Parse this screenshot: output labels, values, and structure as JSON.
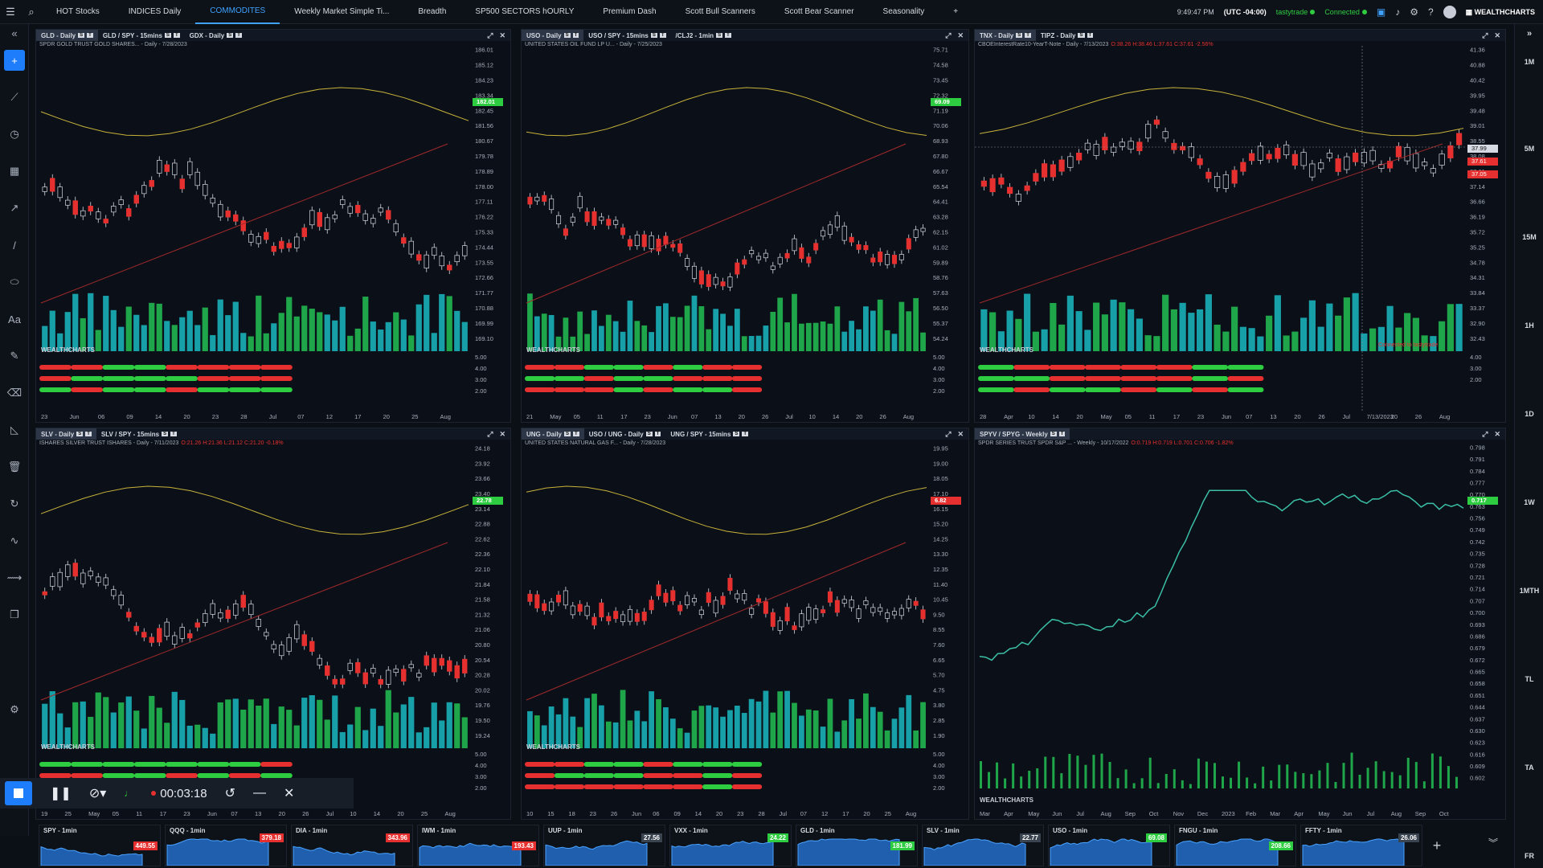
{
  "topbar": {
    "tabs": [
      "HOT Stocks",
      "INDICES Daily",
      "COMMODITES",
      "Weekly Market Simple Ti...",
      "Breadth",
      "SP500 SECTORS hOURLY",
      "Premium Dash",
      "Scott Bull Scanners",
      "Scott Bear Scanner",
      "Seasonality"
    ],
    "active_tab": "COMMODITES",
    "add_tab": "+",
    "time": "9:49:47 PM",
    "timezone": "(UTC -04:00)",
    "broker": "tastytrade",
    "status": "Connected",
    "brand": "WEALTHCHARTS"
  },
  "rightbar": {
    "intervals": [
      "1M",
      "5M",
      "15M",
      "1H",
      "1D",
      "1W",
      "1MTH",
      "TL",
      "TA",
      "FR"
    ]
  },
  "panels": [
    {
      "tabs": [
        "GLD - Daily",
        "GLD / SPY - 15mins",
        "GDX - Daily"
      ],
      "subtitle": "SPDR GOLD TRUST GOLD SHARES... - Daily - 7/28/2023",
      "prices": [
        "186.01",
        "185.12",
        "184.23",
        "183.34",
        "182.45",
        "181.56",
        "180.67",
        "179.78",
        "178.89",
        "178.00",
        "177.11",
        "176.22",
        "175.33",
        "174.44",
        "173.55",
        "172.66",
        "171.77",
        "170.88",
        "169.99",
        "169.10"
      ],
      "last": "182.01",
      "osc_labels": [
        "5.00",
        "4.00",
        "3.00",
        "2.00"
      ],
      "dates": [
        "23",
        "Jun",
        "06",
        "09",
        "14",
        "20",
        "23",
        "28",
        "Jul",
        "07",
        "12",
        "17",
        "20",
        "25",
        "Aug"
      ],
      "watermark": "WEALTHCHARTS"
    },
    {
      "tabs": [
        "USO - Daily",
        "USO / SPY - 15mins",
        "/CLJ2 - 1min"
      ],
      "subtitle": "UNITED STATES OIL FUND LP U... - Daily - 7/25/2023",
      "prices": [
        "75.71",
        "74.58",
        "73.45",
        "72.32",
        "71.19",
        "70.06",
        "68.93",
        "67.80",
        "66.67",
        "65.54",
        "64.41",
        "63.28",
        "62.15",
        "61.02",
        "59.89",
        "58.76",
        "57.63",
        "56.50",
        "55.37",
        "54.24"
      ],
      "last": "69.09",
      "osc_labels": [
        "5.00",
        "4.00",
        "3.00",
        "2.00"
      ],
      "dates": [
        "21",
        "May",
        "05",
        "11",
        "17",
        "23",
        "Jun",
        "07",
        "13",
        "20",
        "26",
        "Jul",
        "10",
        "14",
        "20",
        "26",
        "Aug"
      ],
      "watermark": "WEALTHCHARTS"
    },
    {
      "tabs": [
        "TNX - Daily",
        "TIPZ - Daily"
      ],
      "subtitle": "CBOEInterestRate10-YearT-Note - Daily - 7/13/2023",
      "subtitle_vals": "O:38.26 H:38.46 L:37.61 C:37.61 -2.56%",
      "prices": [
        "41.36",
        "40.88",
        "40.42",
        "39.95",
        "39.48",
        "39.01",
        "38.55",
        "38.08",
        "37.61",
        "37.14",
        "36.66",
        "36.19",
        "35.72",
        "35.25",
        "34.78",
        "34.31",
        "33.84",
        "33.37",
        "32.90",
        "32.43"
      ],
      "labels_right": [
        "37.99",
        "37.61",
        "37.05"
      ],
      "osc_labels": [
        "4.00",
        "3.00",
        "2.00"
      ],
      "connected_note": "Connected to tastytrade",
      "dates": [
        "28",
        "Apr",
        "10",
        "14",
        "20",
        "May",
        "05",
        "11",
        "17",
        "23",
        "Jun",
        "07",
        "13",
        "20",
        "26",
        "Jul",
        "7/13/2023",
        "20",
        "26",
        "Aug"
      ],
      "watermark": "WEALTHCHARTS"
    },
    {
      "tabs": [
        "SLV - Daily",
        "SLV / SPY - 15mins"
      ],
      "subtitle": "ISHARES SILVER TRUST ISHARES - Daily - 7/11/2023",
      "subtitle_vals": "O:21.26 H:21.36 L:21.12 C:21.20 -0.18%",
      "prices": [
        "24.18",
        "23.92",
        "23.66",
        "23.40",
        "23.14",
        "22.88",
        "22.62",
        "22.36",
        "22.10",
        "21.84",
        "21.58",
        "21.32",
        "21.06",
        "20.80",
        "20.54",
        "20.28",
        "20.02",
        "19.76",
        "19.50",
        "19.24"
      ],
      "last": "22.78",
      "osc_labels": [
        "5.00",
        "4.00",
        "3.00",
        "2.00"
      ],
      "dates": [
        "19",
        "25",
        "May",
        "05",
        "11",
        "17",
        "23",
        "Jun",
        "07",
        "13",
        "20",
        "26",
        "Jul",
        "10",
        "14",
        "20",
        "25",
        "Aug"
      ],
      "watermark": "WEALTHCHARTS"
    },
    {
      "tabs": [
        "UNG - Daily",
        "USO / UNG - Daily",
        "UNG / SPY - 15mins"
      ],
      "subtitle": "UNITED STATES NATURAL GAS F... - Daily - 7/28/2023",
      "prices": [
        "19.95",
        "19.00",
        "18.05",
        "17.10",
        "16.15",
        "15.20",
        "14.25",
        "13.30",
        "12.35",
        "11.40",
        "10.45",
        "9.50",
        "8.55",
        "7.60",
        "6.65",
        "5.70",
        "4.75",
        "3.80",
        "2.85",
        "1.90"
      ],
      "last": "6.82",
      "osc_labels": [
        "5.00",
        "4.00",
        "3.00",
        "2.00"
      ],
      "dates": [
        "10",
        "15",
        "18",
        "23",
        "26",
        "Jun",
        "06",
        "09",
        "14",
        "20",
        "23",
        "28",
        "Jul",
        "07",
        "12",
        "17",
        "20",
        "25",
        "Aug"
      ],
      "watermark": "WEALTHCHARTS"
    },
    {
      "tabs": [
        "SPYV / SPYG - Weekly"
      ],
      "subtitle": "SPDR SERIES TRUST SPDR S&P ... - Weekly - 10/17/2022",
      "subtitle_vals": "O:0.719 H:0.719 L:0.701 C:0.706 -1.82%",
      "prices": [
        "0.798",
        "0.791",
        "0.784",
        "0.777",
        "0.770",
        "0.763",
        "0.756",
        "0.749",
        "0.742",
        "0.735",
        "0.728",
        "0.721",
        "0.714",
        "0.707",
        "0.700",
        "0.693",
        "0.686",
        "0.679",
        "0.672",
        "0.665",
        "0.658",
        "0.651",
        "0.644",
        "0.637",
        "0.630",
        "0.623",
        "0.616",
        "0.609",
        "0.602"
      ],
      "last": "0.717",
      "dates": [
        "Mar",
        "Apr",
        "May",
        "Jun",
        "Jul",
        "Aug",
        "Sep",
        "Oct",
        "Nov",
        "Dec",
        "2023",
        "Feb",
        "Mar",
        "Apr",
        "May",
        "Jun",
        "Jul",
        "Aug",
        "Sep",
        "Oct"
      ],
      "watermark": "WEALTHCHARTS"
    }
  ],
  "recorder": {
    "time": "00:03:18"
  },
  "minis": [
    {
      "title": "SPY - 1min",
      "price": "449.55",
      "color": "#e5302f"
    },
    {
      "title": "QQQ - 1min",
      "price": "379.18",
      "color": "#e5302f"
    },
    {
      "title": "DIA - 1min",
      "price": "343.96",
      "color": "#e5302f"
    },
    {
      "title": "IWM - 1min",
      "price": "193.43",
      "color": "#e5302f"
    },
    {
      "title": "UUP - 1min",
      "price": "27.56",
      "color": "#3a4350"
    },
    {
      "title": "VXX - 1min",
      "price": "24.22",
      "color": "#2ecc40"
    },
    {
      "title": "GLD - 1min",
      "price": "181.99",
      "color": "#2ecc40"
    },
    {
      "title": "SLV - 1min",
      "price": "22.77",
      "color": "#3a4350"
    },
    {
      "title": "USO - 1min",
      "price": "69.08",
      "color": "#2ecc40"
    },
    {
      "title": "FNGU - 1min",
      "price": "208.66",
      "color": "#2ecc40"
    },
    {
      "title": "FFTY - 1min",
      "price": "26.06",
      "color": "#3a4350"
    }
  ],
  "colors": {
    "up": "#2ecc40",
    "down": "#e5302f",
    "volume_up": "#1fa64a",
    "volume_alt": "#18a0a8",
    "ma_yellow": "#c8b23a",
    "accent": "#1e7dfb"
  }
}
